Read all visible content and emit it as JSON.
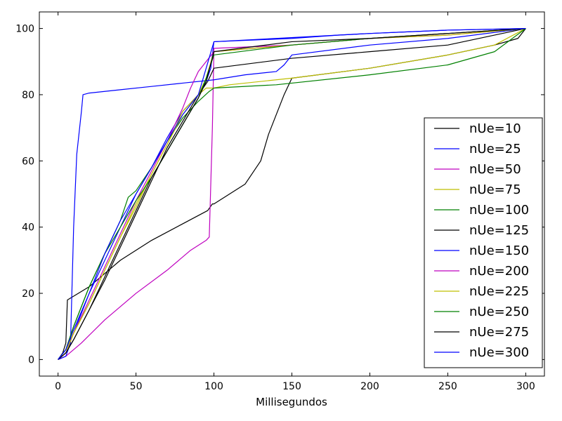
{
  "chart_data": {
    "type": "line",
    "title": "",
    "xlabel": "Millisegundos",
    "ylabel": "",
    "xlim": [
      -12,
      312
    ],
    "ylim": [
      -5,
      105
    ],
    "xticks": [
      0,
      50,
      100,
      150,
      200,
      250,
      300
    ],
    "yticks": [
      0,
      20,
      40,
      60,
      80,
      100
    ],
    "xtick_labels": [
      "0",
      "50",
      "100",
      "150",
      "200",
      "250",
      "300"
    ],
    "ytick_labels": [
      "0",
      "20",
      "40",
      "60",
      "80",
      "100"
    ],
    "grid": false,
    "legend_position": "lower-right",
    "series": [
      {
        "name": "nUe=10",
        "color": "#000000",
        "x": [
          0,
          3,
          5,
          6,
          20,
          40,
          60,
          80,
          96,
          99,
          100,
          120,
          130,
          135,
          145,
          150,
          200,
          250,
          280,
          295,
          300
        ],
        "y": [
          0,
          2,
          5,
          18,
          22,
          30,
          36,
          41,
          45,
          47,
          47,
          53,
          60,
          68,
          80,
          85,
          88,
          92,
          95,
          97,
          100
        ]
      },
      {
        "name": "nUe=25",
        "color": "#0000ff",
        "x": [
          0,
          5,
          10,
          15,
          20,
          30,
          40,
          50,
          60,
          70,
          80,
          90,
          95,
          98,
          100,
          140,
          180,
          200,
          250,
          300
        ],
        "y": [
          0,
          2,
          8,
          14,
          20,
          30,
          40,
          50,
          58,
          67,
          75,
          80,
          84,
          88,
          96,
          97,
          98,
          98.5,
          99.5,
          100
        ]
      },
      {
        "name": "nUe=50",
        "color": "#bf00bf",
        "x": [
          0,
          5,
          15,
          30,
          50,
          70,
          85,
          95,
          97,
          99,
          100,
          150,
          200,
          250,
          300
        ],
        "y": [
          0,
          1,
          5,
          12,
          20,
          27,
          33,
          36,
          37,
          70,
          94,
          95,
          97,
          98,
          100
        ]
      },
      {
        "name": "nUe=75",
        "color": "#bfbf00",
        "x": [
          0,
          5,
          10,
          20,
          30,
          40,
          50,
          60,
          70,
          80,
          90,
          95,
          100,
          110,
          150,
          200,
          250,
          280,
          300
        ],
        "y": [
          0,
          3,
          8,
          17,
          27,
          37,
          46,
          56,
          65,
          75,
          80,
          82,
          82,
          83,
          85,
          88,
          92,
          95,
          100
        ]
      },
      {
        "name": "nUe=100",
        "color": "#008000",
        "x": [
          0,
          5,
          10,
          20,
          30,
          40,
          45,
          50,
          60,
          70,
          80,
          90,
          97,
          100,
          140,
          200,
          250,
          280,
          300
        ],
        "y": [
          0,
          3,
          10,
          22,
          32,
          42,
          49,
          51,
          58,
          66,
          73,
          78,
          81,
          82,
          83,
          86,
          89,
          93,
          100
        ]
      },
      {
        "name": "nUe=125",
        "color": "#000000",
        "x": [
          0,
          5,
          10,
          20,
          30,
          40,
          50,
          60,
          70,
          80,
          90,
          96,
          100,
          150,
          200,
          250,
          300
        ],
        "y": [
          0,
          2,
          6,
          15,
          24,
          34,
          44,
          54,
          64,
          72,
          80,
          84,
          88,
          91,
          93,
          95,
          100
        ]
      },
      {
        "name": "nUe=150",
        "color": "#0000ff",
        "x": [
          0,
          5,
          8,
          10,
          12,
          15,
          16,
          20,
          40,
          60,
          80,
          100,
          120,
          140,
          145,
          150,
          200,
          250,
          300
        ],
        "y": [
          0,
          1,
          5,
          40,
          62,
          75,
          80,
          80.5,
          81.5,
          82.5,
          83.5,
          84.5,
          86,
          87,
          89,
          92,
          95,
          97,
          100
        ]
      },
      {
        "name": "nUe=200",
        "color": "#bf00bf",
        "x": [
          0,
          5,
          10,
          20,
          30,
          40,
          50,
          60,
          70,
          80,
          85,
          90,
          95,
          100,
          150,
          200,
          250,
          300
        ],
        "y": [
          0,
          2,
          8,
          18,
          28,
          38,
          48,
          57,
          66,
          76,
          82,
          87,
          90,
          93,
          95,
          97,
          98.5,
          100
        ]
      },
      {
        "name": "nUe=225",
        "color": "#bfbf00",
        "x": [
          0,
          5,
          10,
          20,
          30,
          40,
          50,
          60,
          70,
          80,
          90,
          95,
          100,
          150,
          200,
          250,
          300
        ],
        "y": [
          0,
          2,
          8,
          17,
          27,
          37,
          47,
          56,
          65,
          74,
          80,
          85,
          93,
          95,
          97,
          98,
          100
        ]
      },
      {
        "name": "nUe=250",
        "color": "#008000",
        "x": [
          0,
          5,
          10,
          20,
          30,
          40,
          50,
          60,
          70,
          80,
          90,
          95,
          100,
          150,
          200,
          250,
          300
        ],
        "y": [
          0,
          3,
          10,
          22,
          32,
          40,
          48,
          55,
          63,
          71,
          79,
          85,
          92,
          95,
          97,
          98.5,
          100
        ]
      },
      {
        "name": "nUe=275",
        "color": "#000000",
        "x": [
          0,
          5,
          10,
          20,
          30,
          40,
          50,
          60,
          70,
          80,
          90,
          95,
          100,
          150,
          200,
          250,
          300
        ],
        "y": [
          0,
          2,
          6,
          15,
          25,
          35,
          45,
          55,
          63,
          71,
          79,
          84,
          93,
          96,
          97,
          98.5,
          100
        ]
      },
      {
        "name": "nUe=300",
        "color": "#0000ff",
        "x": [
          0,
          5,
          10,
          20,
          30,
          40,
          50,
          60,
          70,
          80,
          90,
          95,
          100,
          150,
          180,
          200,
          250,
          300
        ],
        "y": [
          0,
          3,
          9,
          20,
          32,
          42,
          50,
          58,
          66,
          74,
          80,
          88,
          96,
          97,
          98,
          98.5,
          99.5,
          100
        ]
      }
    ]
  }
}
